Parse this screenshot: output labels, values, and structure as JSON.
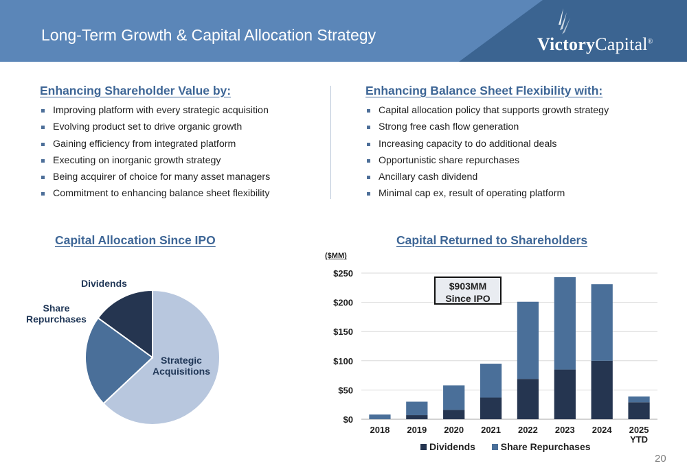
{
  "header": {
    "title": "Long-Term Growth & Capital Allocation Strategy",
    "logo_bold": "Victory",
    "logo_light": "Capital",
    "logo_mark": "®"
  },
  "left_column": {
    "heading": "Enhancing Shareholder Value by:",
    "items": [
      "Improving platform with every strategic acquisition",
      "Evolving product set to drive organic growth",
      "Gaining efficiency from integrated platform",
      "Executing on inorganic growth strategy",
      "Being acquirer of choice for many asset managers",
      "Commitment to enhancing balance sheet flexibility"
    ]
  },
  "right_column": {
    "heading": "Enhancing Balance Sheet Flexibility with:",
    "items": [
      "Capital allocation policy that supports growth strategy",
      "Strong free cash flow generation",
      "Increasing capacity to do additional deals",
      "Opportunistic share repurchases",
      "Ancillary cash dividend",
      "Minimal cap ex, result of operating platform"
    ]
  },
  "page_number": "20",
  "colors": {
    "header": "#5b86b8",
    "header_dark": "#3b6491",
    "heading": "#3e6696",
    "dividends": "#253550",
    "share_repurchases": "#4a6f99",
    "strategic_acquisitions": "#b8c7de"
  },
  "chart_data": [
    {
      "type": "pie",
      "title": "Capital Allocation Since IPO",
      "slices": [
        {
          "label": "Strategic Acquisitions",
          "label_lines": [
            "Strategic",
            "Acquisitions"
          ],
          "value": 63,
          "color": "#b8c7de"
        },
        {
          "label": "Share Repurchases",
          "label_lines": [
            "Share",
            "Repurchases"
          ],
          "value": 22,
          "color": "#4a6f99"
        },
        {
          "label": "Dividends",
          "label_lines": [
            "Dividends"
          ],
          "value": 15,
          "color": "#253550"
        }
      ]
    },
    {
      "type": "bar",
      "stacked": true,
      "title": "Capital Returned to Shareholders",
      "unit_label": "($MM)",
      "callout": [
        "$903MM",
        "Since IPO"
      ],
      "categories": [
        "2018",
        "2019",
        "2020",
        "2021",
        "2022",
        "2023",
        "2024",
        "2025"
      ],
      "category_sublabels": [
        "",
        "",
        "",
        "",
        "",
        "",
        "",
        "YTD"
      ],
      "series": [
        {
          "name": "Dividends",
          "color": "#253550",
          "values": [
            0,
            7,
            16,
            37,
            69,
            85,
            100,
            29
          ]
        },
        {
          "name": "Share Repurchases",
          "color": "#4a6f99",
          "values": [
            8,
            23,
            42,
            58,
            132,
            158,
            131,
            10
          ]
        }
      ],
      "ylim": [
        0,
        250
      ],
      "yticks": [
        0,
        50,
        100,
        150,
        200,
        250
      ],
      "ytick_labels": [
        "$0",
        "$50",
        "$100",
        "$150",
        "$200",
        "$250"
      ],
      "grid": true,
      "legend_position": "bottom"
    }
  ]
}
